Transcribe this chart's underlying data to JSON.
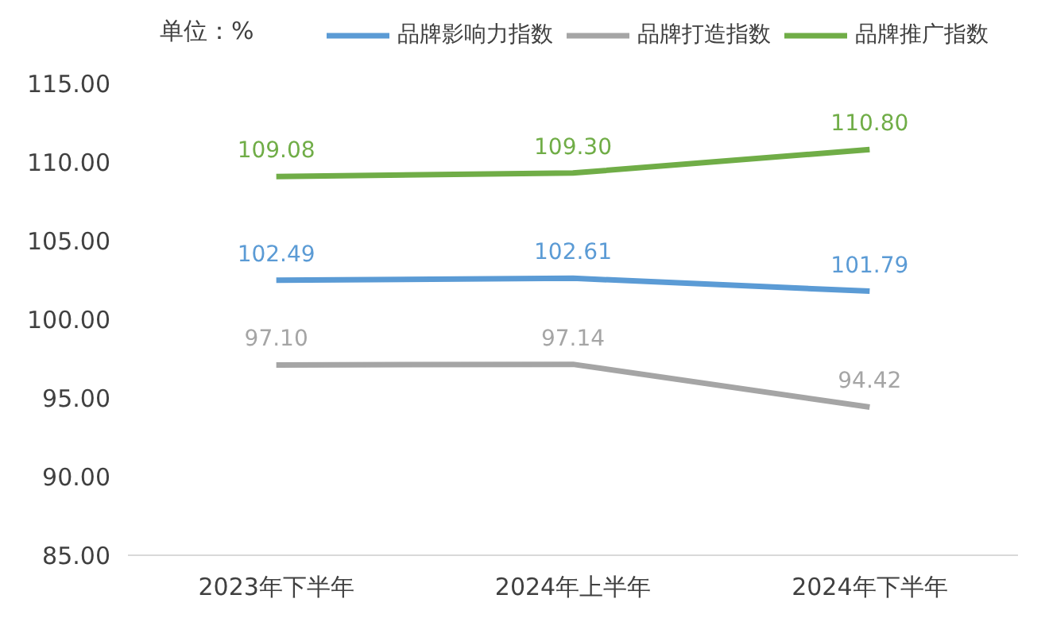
{
  "chart_data": {
    "type": "line",
    "categories": [
      "2023年下半年",
      "2024年上半年",
      "2024年下半年"
    ],
    "series": [
      {
        "name": "品牌影响力指数",
        "color": "#5b9bd5",
        "values": [
          102.49,
          102.61,
          101.79
        ],
        "value_labels": [
          "102.49",
          "102.61",
          "101.79"
        ]
      },
      {
        "name": "品牌打造指数",
        "color": "#a5a5a5",
        "values": [
          97.1,
          97.14,
          94.42
        ],
        "value_labels": [
          "97.10",
          "97.14",
          "94.42"
        ]
      },
      {
        "name": "品牌推广指数",
        "color": "#70ad47",
        "values": [
          109.08,
          109.3,
          110.8
        ],
        "value_labels": [
          "109.08",
          "109.30",
          "110.80"
        ]
      }
    ],
    "ylim": [
      85,
      115
    ],
    "yticks": [
      {
        "value": 85,
        "label": "85.00"
      },
      {
        "value": 90,
        "label": "90.00"
      },
      {
        "value": 95,
        "label": "95.00"
      },
      {
        "value": 100,
        "label": "100.00"
      },
      {
        "value": 105,
        "label": "105.00"
      },
      {
        "value": 110,
        "label": "110.00"
      },
      {
        "value": 115,
        "label": "115.00"
      }
    ],
    "annotations": [
      "单位：%"
    ],
    "legend": "top",
    "grid": false,
    "marker": "none",
    "line_style": "solid"
  }
}
